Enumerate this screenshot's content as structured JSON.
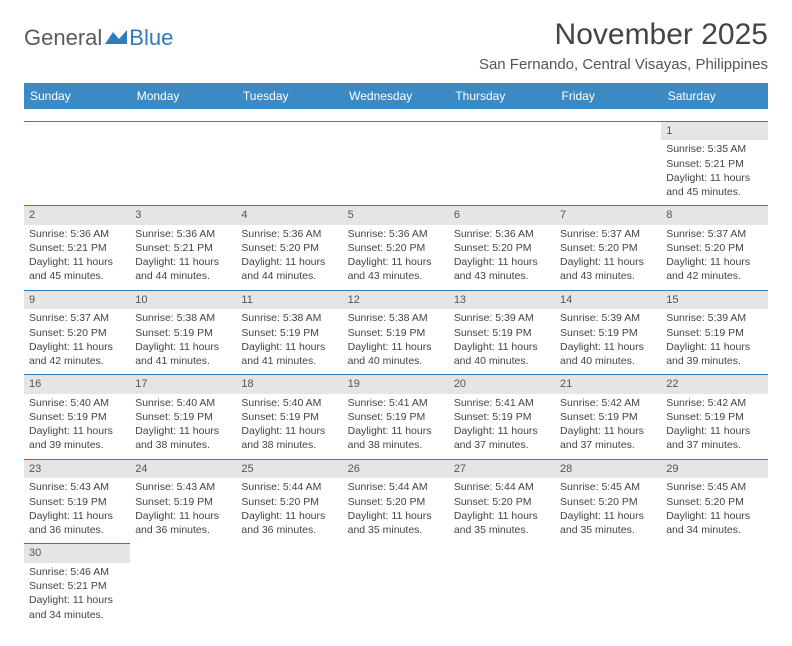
{
  "logo": {
    "text1": "General",
    "text2": "Blue"
  },
  "title": "November 2025",
  "location": "San Fernando, Central Visayas, Philippines",
  "colors": {
    "header_bg": "#3b8ac4",
    "rule": "#2f7ac0",
    "daynum_bg": "#e5e5e5"
  },
  "weekdays": [
    "Sunday",
    "Monday",
    "Tuesday",
    "Wednesday",
    "Thursday",
    "Friday",
    "Saturday"
  ],
  "weeks": [
    [
      null,
      null,
      null,
      null,
      null,
      null,
      {
        "n": "1",
        "sr": "Sunrise: 5:35 AM",
        "ss": "Sunset: 5:21 PM",
        "dl1": "Daylight: 11 hours",
        "dl2": "and 45 minutes."
      }
    ],
    [
      {
        "n": "2",
        "sr": "Sunrise: 5:36 AM",
        "ss": "Sunset: 5:21 PM",
        "dl1": "Daylight: 11 hours",
        "dl2": "and 45 minutes."
      },
      {
        "n": "3",
        "sr": "Sunrise: 5:36 AM",
        "ss": "Sunset: 5:21 PM",
        "dl1": "Daylight: 11 hours",
        "dl2": "and 44 minutes."
      },
      {
        "n": "4",
        "sr": "Sunrise: 5:36 AM",
        "ss": "Sunset: 5:20 PM",
        "dl1": "Daylight: 11 hours",
        "dl2": "and 44 minutes."
      },
      {
        "n": "5",
        "sr": "Sunrise: 5:36 AM",
        "ss": "Sunset: 5:20 PM",
        "dl1": "Daylight: 11 hours",
        "dl2": "and 43 minutes."
      },
      {
        "n": "6",
        "sr": "Sunrise: 5:36 AM",
        "ss": "Sunset: 5:20 PM",
        "dl1": "Daylight: 11 hours",
        "dl2": "and 43 minutes."
      },
      {
        "n": "7",
        "sr": "Sunrise: 5:37 AM",
        "ss": "Sunset: 5:20 PM",
        "dl1": "Daylight: 11 hours",
        "dl2": "and 43 minutes."
      },
      {
        "n": "8",
        "sr": "Sunrise: 5:37 AM",
        "ss": "Sunset: 5:20 PM",
        "dl1": "Daylight: 11 hours",
        "dl2": "and 42 minutes."
      }
    ],
    [
      {
        "n": "9",
        "sr": "Sunrise: 5:37 AM",
        "ss": "Sunset: 5:20 PM",
        "dl1": "Daylight: 11 hours",
        "dl2": "and 42 minutes."
      },
      {
        "n": "10",
        "sr": "Sunrise: 5:38 AM",
        "ss": "Sunset: 5:19 PM",
        "dl1": "Daylight: 11 hours",
        "dl2": "and 41 minutes."
      },
      {
        "n": "11",
        "sr": "Sunrise: 5:38 AM",
        "ss": "Sunset: 5:19 PM",
        "dl1": "Daylight: 11 hours",
        "dl2": "and 41 minutes."
      },
      {
        "n": "12",
        "sr": "Sunrise: 5:38 AM",
        "ss": "Sunset: 5:19 PM",
        "dl1": "Daylight: 11 hours",
        "dl2": "and 40 minutes."
      },
      {
        "n": "13",
        "sr": "Sunrise: 5:39 AM",
        "ss": "Sunset: 5:19 PM",
        "dl1": "Daylight: 11 hours",
        "dl2": "and 40 minutes."
      },
      {
        "n": "14",
        "sr": "Sunrise: 5:39 AM",
        "ss": "Sunset: 5:19 PM",
        "dl1": "Daylight: 11 hours",
        "dl2": "and 40 minutes."
      },
      {
        "n": "15",
        "sr": "Sunrise: 5:39 AM",
        "ss": "Sunset: 5:19 PM",
        "dl1": "Daylight: 11 hours",
        "dl2": "and 39 minutes."
      }
    ],
    [
      {
        "n": "16",
        "sr": "Sunrise: 5:40 AM",
        "ss": "Sunset: 5:19 PM",
        "dl1": "Daylight: 11 hours",
        "dl2": "and 39 minutes."
      },
      {
        "n": "17",
        "sr": "Sunrise: 5:40 AM",
        "ss": "Sunset: 5:19 PM",
        "dl1": "Daylight: 11 hours",
        "dl2": "and 38 minutes."
      },
      {
        "n": "18",
        "sr": "Sunrise: 5:40 AM",
        "ss": "Sunset: 5:19 PM",
        "dl1": "Daylight: 11 hours",
        "dl2": "and 38 minutes."
      },
      {
        "n": "19",
        "sr": "Sunrise: 5:41 AM",
        "ss": "Sunset: 5:19 PM",
        "dl1": "Daylight: 11 hours",
        "dl2": "and 38 minutes."
      },
      {
        "n": "20",
        "sr": "Sunrise: 5:41 AM",
        "ss": "Sunset: 5:19 PM",
        "dl1": "Daylight: 11 hours",
        "dl2": "and 37 minutes."
      },
      {
        "n": "21",
        "sr": "Sunrise: 5:42 AM",
        "ss": "Sunset: 5:19 PM",
        "dl1": "Daylight: 11 hours",
        "dl2": "and 37 minutes."
      },
      {
        "n": "22",
        "sr": "Sunrise: 5:42 AM",
        "ss": "Sunset: 5:19 PM",
        "dl1": "Daylight: 11 hours",
        "dl2": "and 37 minutes."
      }
    ],
    [
      {
        "n": "23",
        "sr": "Sunrise: 5:43 AM",
        "ss": "Sunset: 5:19 PM",
        "dl1": "Daylight: 11 hours",
        "dl2": "and 36 minutes."
      },
      {
        "n": "24",
        "sr": "Sunrise: 5:43 AM",
        "ss": "Sunset: 5:19 PM",
        "dl1": "Daylight: 11 hours",
        "dl2": "and 36 minutes."
      },
      {
        "n": "25",
        "sr": "Sunrise: 5:44 AM",
        "ss": "Sunset: 5:20 PM",
        "dl1": "Daylight: 11 hours",
        "dl2": "and 36 minutes."
      },
      {
        "n": "26",
        "sr": "Sunrise: 5:44 AM",
        "ss": "Sunset: 5:20 PM",
        "dl1": "Daylight: 11 hours",
        "dl2": "and 35 minutes."
      },
      {
        "n": "27",
        "sr": "Sunrise: 5:44 AM",
        "ss": "Sunset: 5:20 PM",
        "dl1": "Daylight: 11 hours",
        "dl2": "and 35 minutes."
      },
      {
        "n": "28",
        "sr": "Sunrise: 5:45 AM",
        "ss": "Sunset: 5:20 PM",
        "dl1": "Daylight: 11 hours",
        "dl2": "and 35 minutes."
      },
      {
        "n": "29",
        "sr": "Sunrise: 5:45 AM",
        "ss": "Sunset: 5:20 PM",
        "dl1": "Daylight: 11 hours",
        "dl2": "and 34 minutes."
      }
    ],
    [
      {
        "n": "30",
        "sr": "Sunrise: 5:46 AM",
        "ss": "Sunset: 5:21 PM",
        "dl1": "Daylight: 11 hours",
        "dl2": "and 34 minutes."
      },
      null,
      null,
      null,
      null,
      null,
      null
    ]
  ]
}
